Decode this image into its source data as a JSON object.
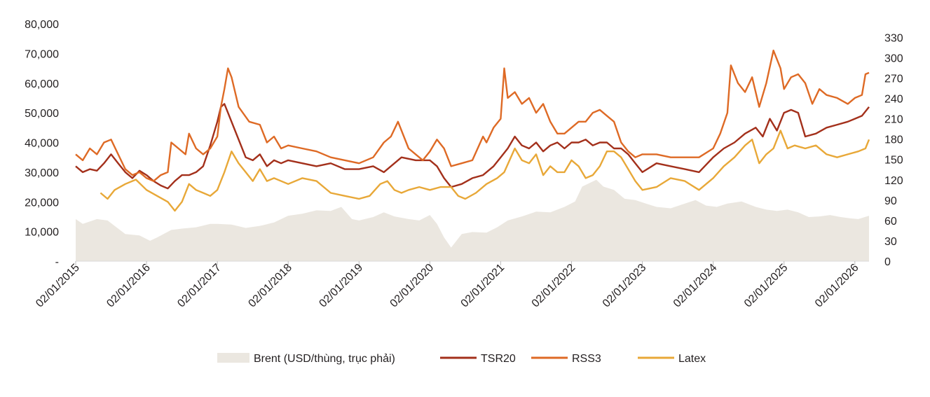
{
  "chart_data": {
    "type": "line",
    "title": "",
    "xlabel": "",
    "ylabel": "",
    "y_left_lim": [
      0,
      80000
    ],
    "y_right_lim": [
      0,
      350
    ],
    "y_left_ticks": [
      "-",
      "10,000",
      "20,000",
      "30,000",
      "40,000",
      "50,000",
      "60,000",
      "70,000",
      "80,000"
    ],
    "y_right_ticks": [
      "0",
      "30",
      "60",
      "90",
      "120",
      "150",
      "180",
      "210",
      "240",
      "270",
      "300",
      "330"
    ],
    "y_right_tick_values": [
      0,
      30,
      60,
      90,
      120,
      150,
      180,
      210,
      240,
      270,
      300,
      330
    ],
    "x_ticks": [
      "02/01/2015",
      "02/01/2016",
      "02/01/2017",
      "02/01/2018",
      "02/01/2019",
      "02/01/2020",
      "02/01/2021",
      "02/01/2022",
      "02/01/2023",
      "02/01/2024",
      "02/01/2025",
      "02/01/2026"
    ],
    "x_range": [
      2015.0,
      2026.2
    ],
    "legend_position": "bottom",
    "series": [
      {
        "name": "Brent (USD/thùng, trục phải)",
        "type": "area",
        "axis": "right",
        "color": "#ebe7e0",
        "x": [
          2015.0,
          2015.1,
          2015.3,
          2015.45,
          2015.6,
          2015.7,
          2015.9,
          2016.05,
          2016.15,
          2016.35,
          2016.5,
          2016.7,
          2016.9,
          2017.0,
          2017.2,
          2017.4,
          2017.6,
          2017.8,
          2018.0,
          2018.2,
          2018.4,
          2018.6,
          2018.75,
          2018.9,
          2019.0,
          2019.2,
          2019.35,
          2019.5,
          2019.7,
          2019.85,
          2020.0,
          2020.1,
          2020.2,
          2020.3,
          2020.45,
          2020.6,
          2020.8,
          2020.95,
          2021.1,
          2021.3,
          2021.5,
          2021.7,
          2021.9,
          2022.05,
          2022.15,
          2022.25,
          2022.35,
          2022.45,
          2022.6,
          2022.75,
          2022.9,
          2023.05,
          2023.2,
          2023.4,
          2023.6,
          2023.75,
          2023.9,
          2024.05,
          2024.2,
          2024.4,
          2024.6,
          2024.75,
          2024.9,
          2025.05,
          2025.2,
          2025.35,
          2025.5,
          2025.65,
          2025.8,
          2025.95,
          2026.05,
          2026.2
        ],
        "values": [
          62,
          55,
          62,
          60,
          48,
          40,
          38,
          30,
          35,
          46,
          48,
          50,
          55,
          55,
          54,
          49,
          52,
          57,
          67,
          70,
          75,
          74,
          80,
          62,
          60,
          65,
          72,
          66,
          62,
          60,
          68,
          55,
          35,
          20,
          40,
          43,
          42,
          50,
          60,
          66,
          73,
          72,
          80,
          88,
          110,
          115,
          120,
          110,
          105,
          92,
          90,
          85,
          80,
          78,
          85,
          90,
          82,
          80,
          85,
          88,
          80,
          76,
          74,
          76,
          72,
          65,
          66,
          68,
          65,
          63,
          62,
          67
        ]
      },
      {
        "name": "TSR20",
        "type": "line",
        "axis": "left",
        "color": "#a3301b",
        "x": [
          2015.0,
          2015.1,
          2015.2,
          2015.3,
          2015.4,
          2015.5,
          2015.6,
          2015.7,
          2015.8,
          2015.9,
          2016.0,
          2016.1,
          2016.2,
          2016.3,
          2016.4,
          2016.5,
          2016.6,
          2016.7,
          2016.8,
          2016.9,
          2017.0,
          2017.05,
          2017.1,
          2017.15,
          2017.25,
          2017.4,
          2017.5,
          2017.6,
          2017.7,
          2017.8,
          2017.9,
          2018.0,
          2018.2,
          2018.4,
          2018.6,
          2018.8,
          2019.0,
          2019.2,
          2019.35,
          2019.5,
          2019.6,
          2019.8,
          2020.0,
          2020.1,
          2020.2,
          2020.3,
          2020.45,
          2020.6,
          2020.75,
          2020.9,
          2021.0,
          2021.1,
          2021.2,
          2021.3,
          2021.4,
          2021.5,
          2021.6,
          2021.7,
          2021.8,
          2021.9,
          2022.0,
          2022.1,
          2022.2,
          2022.3,
          2022.4,
          2022.5,
          2022.6,
          2022.7,
          2022.8,
          2022.9,
          2023.0,
          2023.2,
          2023.4,
          2023.6,
          2023.8,
          2024.0,
          2024.15,
          2024.3,
          2024.45,
          2024.6,
          2024.7,
          2024.8,
          2024.9,
          2025.0,
          2025.1,
          2025.2,
          2025.3,
          2025.45,
          2025.6,
          2025.75,
          2025.9,
          2026.0,
          2026.1,
          2026.2
        ],
        "values": [
          32000,
          30000,
          31000,
          30500,
          33000,
          36000,
          33000,
          30000,
          28000,
          30500,
          29000,
          27000,
          25500,
          24500,
          27000,
          29000,
          29000,
          30000,
          32000,
          39000,
          47000,
          52000,
          53000,
          50000,
          44000,
          35000,
          34000,
          36000,
          32000,
          34000,
          33000,
          34000,
          33000,
          32000,
          33000,
          31000,
          31000,
          32000,
          30000,
          33000,
          35000,
          34000,
          34000,
          32000,
          28000,
          25000,
          26000,
          28000,
          29000,
          32000,
          35000,
          38000,
          42000,
          39000,
          38000,
          40000,
          37000,
          39000,
          40000,
          38000,
          40000,
          40000,
          41000,
          39000,
          40000,
          40000,
          38000,
          38000,
          36000,
          33000,
          30000,
          33000,
          32000,
          31000,
          30000,
          35000,
          38000,
          40000,
          43000,
          45000,
          42000,
          48000,
          44000,
          50000,
          51000,
          50000,
          42000,
          43000,
          45000,
          46000,
          47000,
          48000,
          49000,
          52000
        ]
      },
      {
        "name": "RSS3",
        "type": "line",
        "axis": "left",
        "color": "#de6a25",
        "x": [
          2015.0,
          2015.1,
          2015.2,
          2015.3,
          2015.4,
          2015.5,
          2015.6,
          2015.7,
          2015.8,
          2015.9,
          2016.0,
          2016.1,
          2016.2,
          2016.3,
          2016.35,
          2016.45,
          2016.55,
          2016.6,
          2016.7,
          2016.8,
          2016.9,
          2017.0,
          2017.05,
          2017.1,
          2017.15,
          2017.2,
          2017.3,
          2017.45,
          2017.6,
          2017.7,
          2017.8,
          2017.9,
          2018.0,
          2018.2,
          2018.4,
          2018.6,
          2018.8,
          2019.0,
          2019.2,
          2019.35,
          2019.45,
          2019.55,
          2019.7,
          2019.8,
          2019.9,
          2020.0,
          2020.1,
          2020.2,
          2020.3,
          2020.45,
          2020.6,
          2020.75,
          2020.8,
          2020.9,
          2021.0,
          2021.05,
          2021.1,
          2021.2,
          2021.3,
          2021.4,
          2021.5,
          2021.6,
          2021.7,
          2021.8,
          2021.9,
          2022.0,
          2022.1,
          2022.2,
          2022.3,
          2022.4,
          2022.5,
          2022.6,
          2022.7,
          2022.8,
          2022.9,
          2023.0,
          2023.2,
          2023.4,
          2023.6,
          2023.8,
          2024.0,
          2024.1,
          2024.2,
          2024.25,
          2024.35,
          2024.45,
          2024.55,
          2024.65,
          2024.75,
          2024.85,
          2024.95,
          2025.0,
          2025.1,
          2025.2,
          2025.3,
          2025.4,
          2025.5,
          2025.6,
          2025.75,
          2025.9,
          2026.0,
          2026.1,
          2026.15,
          2026.2
        ],
        "values": [
          36000,
          34000,
          38000,
          36000,
          40000,
          41000,
          36000,
          31000,
          29000,
          30000,
          28000,
          27000,
          29000,
          30000,
          40000,
          38000,
          36000,
          43000,
          38000,
          36000,
          38000,
          42000,
          52000,
          58000,
          65000,
          62000,
          52000,
          47000,
          46000,
          40000,
          42000,
          38000,
          39000,
          38000,
          37000,
          35000,
          34000,
          33000,
          35000,
          40000,
          42000,
          47000,
          38000,
          36000,
          34000,
          37000,
          41000,
          38000,
          32000,
          33000,
          34000,
          42000,
          40000,
          45000,
          48000,
          65000,
          55000,
          57000,
          53000,
          55000,
          50000,
          53000,
          47000,
          43000,
          43000,
          45000,
          47000,
          47000,
          50000,
          51000,
          49000,
          47000,
          40000,
          37000,
          35000,
          36000,
          36000,
          35000,
          35000,
          35000,
          38000,
          43000,
          50000,
          66000,
          60000,
          57000,
          62000,
          52000,
          60000,
          71000,
          65000,
          58000,
          62000,
          63000,
          60000,
          53000,
          58000,
          56000,
          55000,
          53000,
          55000,
          56000,
          63000,
          63500
        ]
      },
      {
        "name": "Latex",
        "type": "line",
        "axis": "left",
        "color": "#e8a838",
        "x": [
          2015.35,
          2015.45,
          2015.55,
          2015.7,
          2015.85,
          2016.0,
          2016.15,
          2016.3,
          2016.4,
          2016.5,
          2016.6,
          2016.7,
          2016.8,
          2016.9,
          2017.0,
          2017.1,
          2017.2,
          2017.3,
          2017.4,
          2017.5,
          2017.6,
          2017.7,
          2017.8,
          2018.0,
          2018.2,
          2018.4,
          2018.6,
          2018.8,
          2019.0,
          2019.15,
          2019.3,
          2019.4,
          2019.5,
          2019.6,
          2019.7,
          2019.85,
          2020.0,
          2020.15,
          2020.3,
          2020.4,
          2020.5,
          2020.65,
          2020.8,
          2020.95,
          2021.05,
          2021.2,
          2021.3,
          2021.4,
          2021.5,
          2021.6,
          2021.7,
          2021.8,
          2021.9,
          2022.0,
          2022.1,
          2022.2,
          2022.3,
          2022.4,
          2022.5,
          2022.6,
          2022.7,
          2022.8,
          2022.9,
          2023.0,
          2023.2,
          2023.4,
          2023.6,
          2023.8,
          2024.0,
          2024.15,
          2024.3,
          2024.45,
          2024.55,
          2024.65,
          2024.75,
          2024.85,
          2024.95,
          2025.05,
          2025.15,
          2025.3,
          2025.45,
          2025.6,
          2025.75,
          2025.9,
          2026.05,
          2026.15,
          2026.2
        ],
        "values": [
          23000,
          21000,
          24000,
          26000,
          27500,
          24000,
          22000,
          20000,
          17000,
          20000,
          26000,
          24000,
          23000,
          22000,
          24000,
          30000,
          37000,
          33000,
          30000,
          27000,
          31000,
          27000,
          28000,
          26000,
          28000,
          27000,
          23000,
          22000,
          21000,
          22000,
          26000,
          27000,
          24000,
          23000,
          24000,
          25000,
          24000,
          25000,
          25000,
          22000,
          21000,
          23000,
          26000,
          28000,
          30000,
          38000,
          34000,
          33000,
          36000,
          29000,
          32000,
          30000,
          30000,
          34000,
          32000,
          28000,
          29000,
          32000,
          37000,
          37000,
          35000,
          31000,
          27000,
          24000,
          25000,
          28000,
          27000,
          24000,
          28000,
          32000,
          35000,
          39000,
          41000,
          33000,
          36000,
          38000,
          44000,
          38000,
          39000,
          38000,
          39000,
          36000,
          35000,
          36000,
          37000,
          38000,
          41000
        ]
      }
    ]
  }
}
